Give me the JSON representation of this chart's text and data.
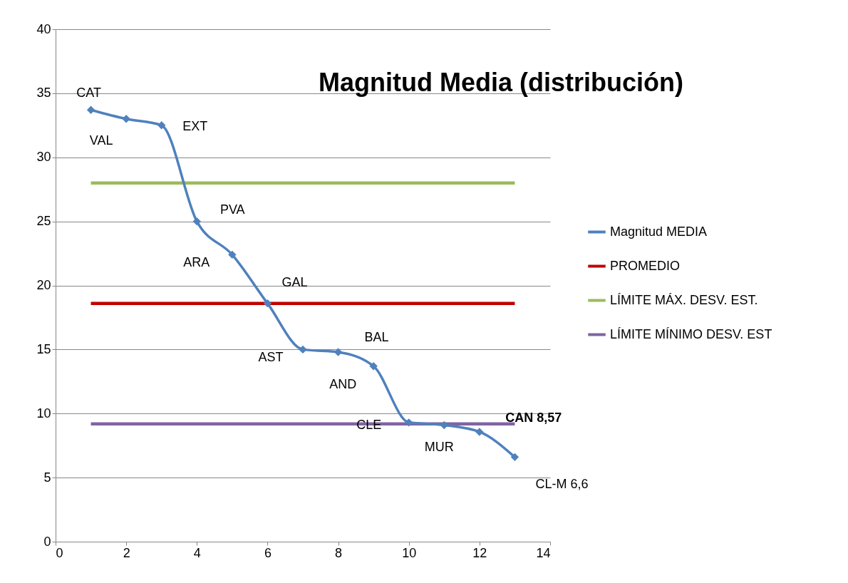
{
  "chart_data": {
    "type": "line",
    "title": "Magnitud Media (distribución)",
    "x": [
      1,
      2,
      3,
      4,
      5,
      6,
      7,
      8,
      9,
      10,
      11,
      12,
      13
    ],
    "series": [
      {
        "name": "Magnitud MEDIA",
        "color": "#4f81bd",
        "values": [
          33.7,
          33.0,
          32.5,
          25.0,
          22.4,
          18.6,
          15.0,
          14.8,
          13.7,
          9.3,
          9.1,
          8.57,
          6.6
        ],
        "marker": "diamond"
      },
      {
        "name": "PROMEDIO",
        "color": "#c00000",
        "values": [
          18.6,
          18.6,
          18.6,
          18.6,
          18.6,
          18.6,
          18.6,
          18.6,
          18.6,
          18.6,
          18.6,
          18.6,
          18.6
        ],
        "marker": "none"
      },
      {
        "name": "LÍMITE MÁX. DESV. EST.",
        "color": "#9bbb59",
        "values": [
          28.0,
          28.0,
          28.0,
          28.0,
          28.0,
          28.0,
          28.0,
          28.0,
          28.0,
          28.0,
          28.0,
          28.0,
          28.0
        ],
        "marker": "none"
      },
      {
        "name": "LÍMITE MÍNIMO DESV. EST",
        "color": "#8064a2",
        "values": [
          9.2,
          9.2,
          9.2,
          9.2,
          9.2,
          9.2,
          9.2,
          9.2,
          9.2,
          9.2,
          9.2,
          9.2,
          9.2
        ],
        "marker": "none"
      }
    ],
    "annotations": [
      {
        "text": "CAT",
        "x": 1,
        "y": 33.7
      },
      {
        "text": "VAL",
        "x": 2,
        "y": 33.0
      },
      {
        "text": "EXT",
        "x": 3,
        "y": 32.5
      },
      {
        "text": "PVA",
        "x": 4,
        "y": 25.0
      },
      {
        "text": "ARA",
        "x": 5,
        "y": 22.4
      },
      {
        "text": "GAL",
        "x": 6,
        "y": 18.6
      },
      {
        "text": "AST",
        "x": 7,
        "y": 15.0
      },
      {
        "text": "BAL",
        "x": 8,
        "y": 14.8
      },
      {
        "text": "AND",
        "x": 9,
        "y": 13.7
      },
      {
        "text": "CLE",
        "x": 10,
        "y": 9.3
      },
      {
        "text": "MUR",
        "x": 11,
        "y": 9.1
      },
      {
        "text": "CAN 8,57",
        "x": 12,
        "y": 8.57
      },
      {
        "text": "CL-M 6,6",
        "x": 13,
        "y": 6.6
      }
    ],
    "xlim": [
      0,
      14
    ],
    "xticks": [
      0,
      2,
      4,
      6,
      8,
      10,
      12,
      14
    ],
    "ylim": [
      0,
      40
    ],
    "yticks": [
      0,
      5,
      10,
      15,
      20,
      25,
      30,
      35,
      40
    ],
    "grid": "y",
    "legend": "right",
    "line_style": "solid"
  }
}
